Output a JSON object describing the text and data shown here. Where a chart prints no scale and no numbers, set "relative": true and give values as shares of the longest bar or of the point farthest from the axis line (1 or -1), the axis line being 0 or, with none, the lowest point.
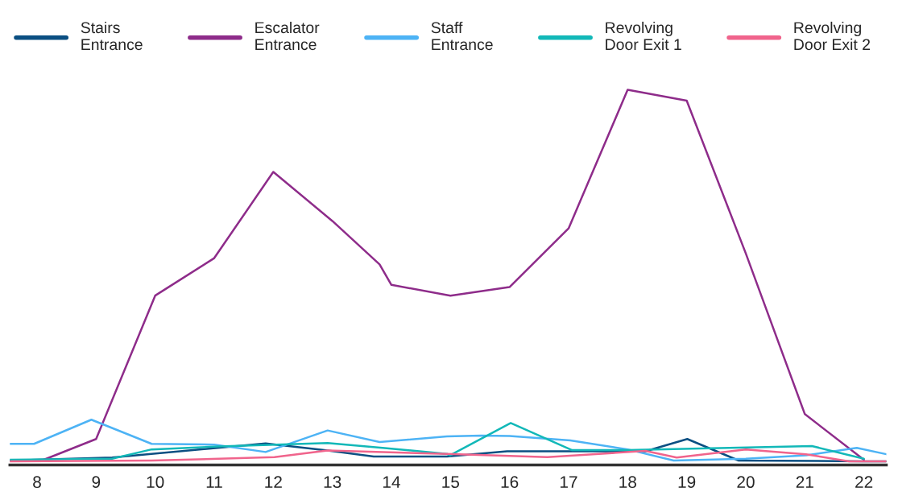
{
  "chart_data": {
    "type": "line",
    "relative": true,
    "xlim": [
      7.54,
      22.38
    ],
    "xticks": [
      8,
      9,
      10,
      11,
      12,
      13,
      14,
      15,
      16,
      17,
      18,
      19,
      20,
      21,
      22
    ],
    "grid": false,
    "legend": "top",
    "tick_labels": "x",
    "line_style": "solid",
    "marker": "none",
    "series": [
      {
        "name": "Stairs\nEntrance",
        "color": "#0b4f82",
        "x": [
          7.54,
          9.27,
          11.87,
          12.92,
          13.7,
          14.94,
          15.96,
          18.3,
          19.01,
          19.88,
          22.0,
          22.38
        ],
        "values": [
          0.002,
          0.01,
          0.048,
          0.029,
          0.013,
          0.013,
          0.027,
          0.027,
          0.06,
          0.002,
          0.0,
          0.0
        ]
      },
      {
        "name": "Escalator\nEntrance",
        "color": "#8e2c8a",
        "x": [
          8.08,
          9.0,
          10.0,
          11.0,
          12.0,
          13.0,
          13.8,
          14.0,
          15.0,
          16.0,
          17.0,
          18.0,
          19.0,
          20.0,
          21.0,
          22.0
        ],
        "values": [
          0.002,
          0.06,
          0.446,
          0.547,
          0.779,
          0.647,
          0.53,
          0.475,
          0.446,
          0.469,
          0.627,
          1.0,
          0.971,
          0.56,
          0.127,
          0.004
        ]
      },
      {
        "name": "Staff\nEntrance",
        "color": "#4db3f5",
        "x": [
          7.54,
          7.95,
          8.92,
          9.94,
          11.0,
          11.87,
          12.92,
          13.8,
          14.94,
          15.52,
          16.0,
          17.03,
          18.0,
          18.78,
          20.0,
          21.02,
          21.88,
          22.38
        ],
        "values": [
          0.047,
          0.047,
          0.112,
          0.047,
          0.045,
          0.025,
          0.083,
          0.052,
          0.067,
          0.069,
          0.068,
          0.056,
          0.032,
          0.002,
          0.007,
          0.016,
          0.036,
          0.019
        ]
      },
      {
        "name": "Revolving\nDoor Exit 1",
        "color": "#12b8b8",
        "x": [
          7.54,
          9.27,
          9.94,
          11.07,
          12.92,
          13.85,
          14.94,
          14.99,
          16.02,
          17.06,
          18.0,
          21.12,
          22.0
        ],
        "values": [
          0.004,
          0.007,
          0.032,
          0.04,
          0.049,
          0.036,
          0.02,
          0.016,
          0.103,
          0.03,
          0.03,
          0.041,
          0.007
        ]
      },
      {
        "name": "Revolving\nDoor Exit 2",
        "color": "#f0648c",
        "x": [
          7.54,
          9.94,
          12.02,
          12.92,
          14.94,
          16.64,
          18.3,
          18.83,
          20.0,
          21.02,
          21.75,
          22.38
        ],
        "values": [
          0.0,
          0.002,
          0.011,
          0.029,
          0.02,
          0.011,
          0.028,
          0.01,
          0.032,
          0.019,
          0.0,
          0.0
        ]
      }
    ]
  }
}
